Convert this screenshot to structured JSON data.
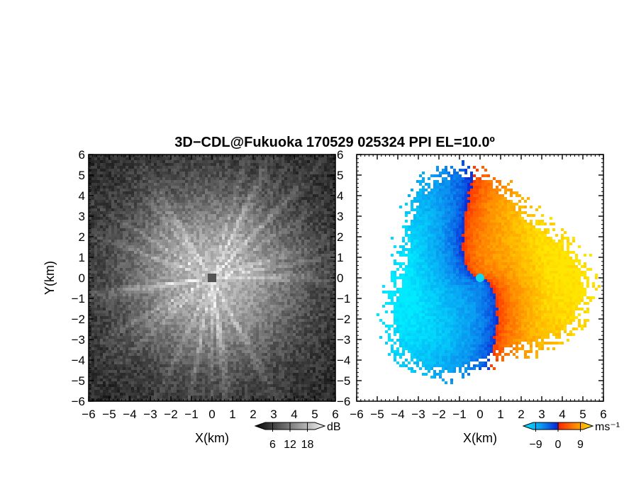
{
  "chart_data": [
    {
      "type": "heatmap",
      "panel": "reflectivity",
      "title": "3D−CDL@Fukuoka 170529 025324 PPI EL=10.0º",
      "xlabel": "X(km)",
      "ylabel": "Y(km)",
      "xlim": [
        -6,
        6
      ],
      "ylim": [
        -6,
        6
      ],
      "xticks": [
        "−6",
        "−5",
        "−4",
        "−3",
        "−2",
        "−1",
        "0",
        "1",
        "2",
        "3",
        "4",
        "5",
        "6"
      ],
      "yticks": [
        "−6",
        "−5",
        "−4",
        "−3",
        "−2",
        "−1",
        "0",
        "1",
        "2",
        "3",
        "4",
        "5",
        "6"
      ],
      "colormap": "grayscale",
      "colorbar": {
        "unit": "dB",
        "ticks": [
          "6",
          "12",
          "18"
        ],
        "range": [
          0,
          24
        ]
      }
    },
    {
      "type": "heatmap",
      "panel": "doppler-velocity",
      "xlabel": "X(km)",
      "ylabel": "",
      "xlim": [
        -6,
        6
      ],
      "ylim": [
        -6,
        6
      ],
      "xticks": [
        "−6",
        "−5",
        "−4",
        "−3",
        "−2",
        "−1",
        "0",
        "1",
        "2",
        "3",
        "4",
        "5",
        "6"
      ],
      "yticks": [
        "−6",
        "−5",
        "−4",
        "−3",
        "−2",
        "−1",
        "0",
        "1",
        "2",
        "3",
        "4",
        "5",
        "6"
      ],
      "colormap": "cyan-blue-red-orange-yellow",
      "colorbar": {
        "unit": "ms⁻¹",
        "ticks": [
          "−9",
          "0",
          "9"
        ],
        "range": [
          -14,
          14
        ]
      }
    }
  ]
}
